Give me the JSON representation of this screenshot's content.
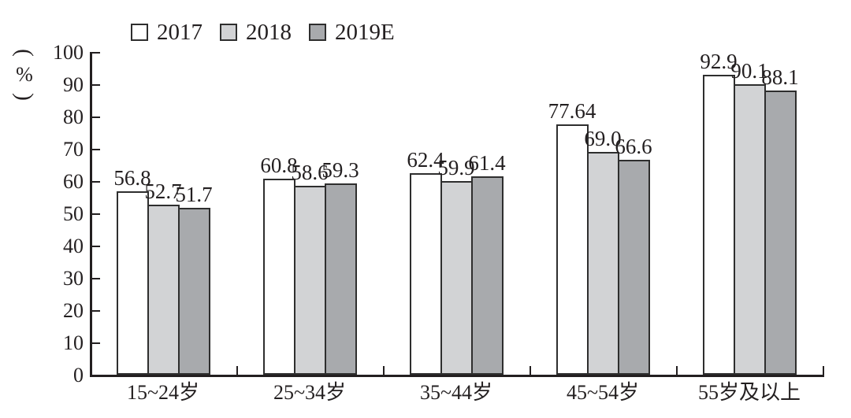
{
  "chart_data": {
    "type": "bar",
    "title": "",
    "y_axis_unit": {
      "open": "(",
      "symbol": "%",
      "close": ")"
    },
    "categories": [
      "15~24岁",
      "25~34岁",
      "35~44岁",
      "45~54岁",
      "55岁及以上"
    ],
    "series": [
      {
        "name": "2017",
        "color": "#ffffff",
        "values": [
          56.8,
          60.8,
          62.4,
          77.64,
          92.9
        ],
        "labels": [
          "56.8",
          "60.8",
          "62.4",
          "77.64",
          "92.9"
        ]
      },
      {
        "name": "2018",
        "color": "#d2d3d5",
        "values": [
          52.7,
          58.6,
          59.9,
          69.0,
          90.1
        ],
        "labels": [
          "52.7",
          "58.6",
          "59.9",
          "69.0",
          "90.1"
        ]
      },
      {
        "name": "2019E",
        "color": "#a8aaad",
        "values": [
          51.7,
          59.3,
          61.4,
          66.6,
          88.1
        ],
        "labels": [
          "51.7",
          "59.3",
          "61.4",
          "66.6",
          "88.1"
        ]
      }
    ],
    "y_ticks": [
      0,
      10,
      20,
      30,
      40,
      50,
      60,
      70,
      80,
      90,
      100
    ],
    "ylim": [
      0,
      100
    ],
    "legend_position": "top-left",
    "grid": false,
    "bar_border_color": "#2e2e2e",
    "axis_color": "#231f20",
    "text_color": "#231f20",
    "background_color": "#ffffff"
  }
}
